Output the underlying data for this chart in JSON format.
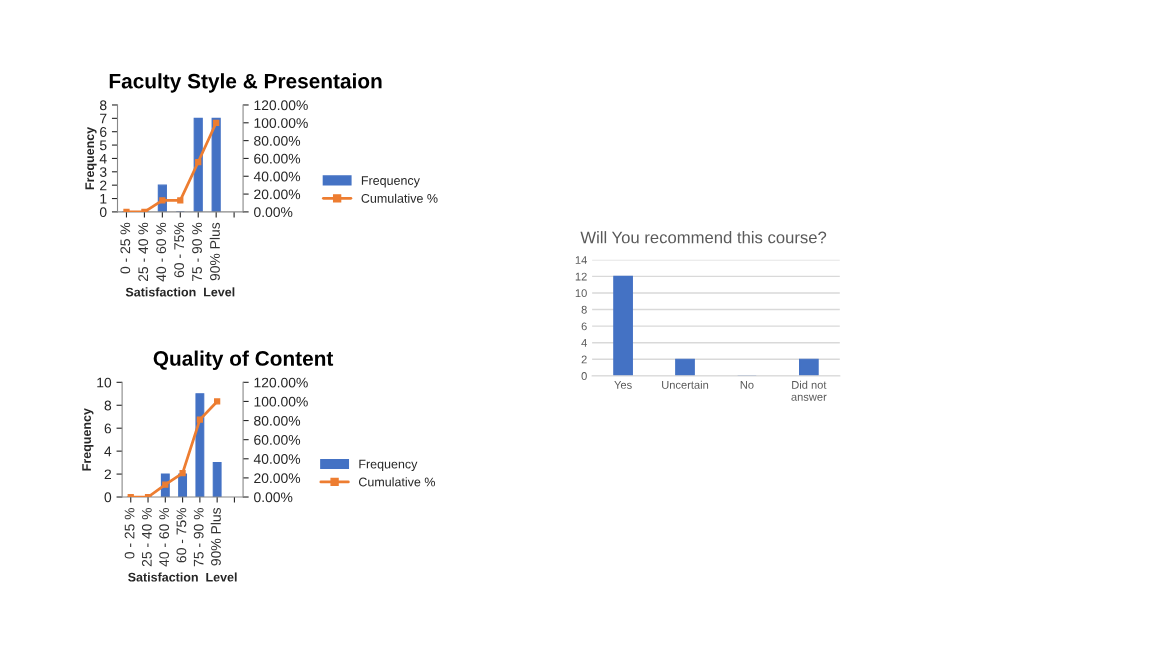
{
  "chart_data": [
    {
      "type": "bar",
      "title": "Faculty Style & Presentaion",
      "xlabel": "Satisfaction  Level",
      "ylabel": "Frequency",
      "categories": [
        "0 - 25 %",
        "25 - 40 %",
        "40 - 60 %",
        "60 - 75%",
        "75 - 90 %",
        "90% Plus",
        null
      ],
      "series": [
        {
          "name": "Frequency",
          "color": "#4472c4",
          "values": [
            0,
            0,
            2,
            0,
            7,
            7,
            null
          ]
        },
        {
          "name": "Cumulative %",
          "type": "line",
          "axis": "y2",
          "color": "#ed7d31",
          "values": [
            0,
            0,
            13,
            13,
            56,
            100,
            null
          ]
        }
      ],
      "ylim": [
        0,
        8
      ],
      "yticks": [
        0,
        1,
        2,
        3,
        4,
        5,
        6,
        7,
        8
      ],
      "y2lim": [
        0,
        120
      ],
      "y2ticks": [
        {
          "value": 0,
          "label": "0.00%"
        },
        {
          "value": 20,
          "label": "20.00%"
        },
        {
          "value": 40,
          "label": "40.00%"
        },
        {
          "value": 60,
          "label": "60.00%"
        },
        {
          "value": 80,
          "label": "80.00%"
        },
        {
          "value": 100,
          "label": "100.00%"
        },
        {
          "value": 120,
          "label": "120.00%"
        }
      ],
      "marker": "square",
      "legend": "right",
      "grid": false
    },
    {
      "type": "bar",
      "title": "Quality of Content",
      "xlabel": "Satisfaction  Level",
      "ylabel": "Frequency",
      "categories": [
        "0 - 25 %",
        "25 - 40 %",
        "40 - 60 %",
        "60 - 75%",
        "75 - 90 %",
        "90% Plus",
        null
      ],
      "series": [
        {
          "name": "Frequency",
          "color": "#4472c4",
          "values": [
            0,
            0,
            2,
            2,
            9,
            3,
            null
          ]
        },
        {
          "name": "Cumulative %",
          "type": "line",
          "axis": "y2",
          "color": "#ed7d31",
          "values": [
            0,
            0,
            13,
            25,
            81,
            100,
            null
          ]
        }
      ],
      "ylim": [
        0,
        10
      ],
      "yticks": [
        0,
        2,
        4,
        6,
        8,
        10
      ],
      "y2lim": [
        0,
        120
      ],
      "y2ticks": [
        {
          "value": 0,
          "label": "0.00%"
        },
        {
          "value": 20,
          "label": "20.00%"
        },
        {
          "value": 40,
          "label": "40.00%"
        },
        {
          "value": 60,
          "label": "60.00%"
        },
        {
          "value": 80,
          "label": "80.00%"
        },
        {
          "value": 100,
          "label": "100.00%"
        },
        {
          "value": 120,
          "label": "120.00%"
        }
      ],
      "marker": "square",
      "legend": "right",
      "grid": false
    },
    {
      "type": "bar",
      "title": "Will You recommend this course?",
      "categories": [
        "Yes",
        "Uncertain",
        "No",
        "Did not\nanswer"
      ],
      "series": [
        {
          "color": "#4472c4",
          "values": [
            12,
            2,
            0,
            2
          ]
        }
      ],
      "ylim": [
        0,
        14
      ],
      "yticks": [
        0,
        2,
        4,
        6,
        8,
        10,
        12,
        14
      ],
      "grid": "y",
      "legend": false
    }
  ]
}
